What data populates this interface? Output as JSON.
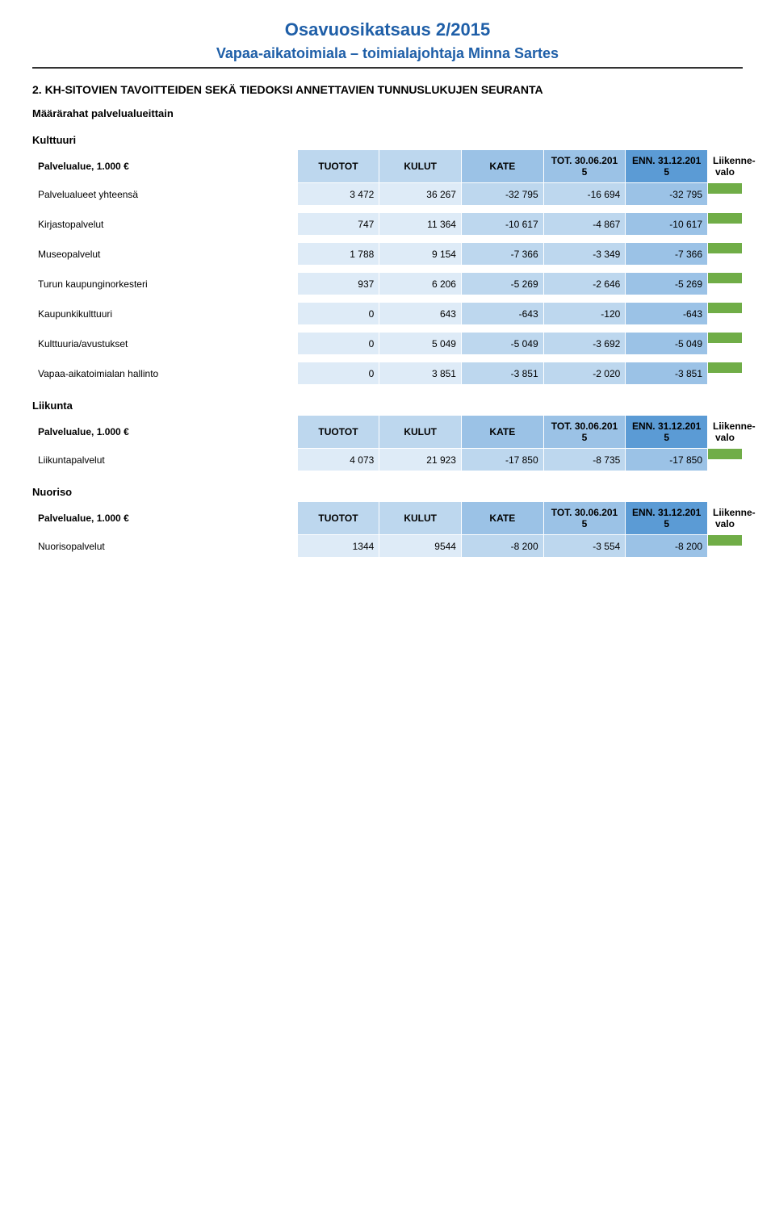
{
  "doc": {
    "title": "Osavuosikatsaus 2/2015",
    "subtitle": "Vapaa-aikatoimiala – toimialajohtaja Minna Sartes",
    "title_color": "#1f5fa8"
  },
  "section_header": "2. KH-SITOVIEN TAVOITTEIDEN SEKÄ TIEDOKSI ANNETTAVIEN TUNNUSLUKUJEN SEURANTA",
  "subheader": "Määrärahat palvelualueittain",
  "columns": {
    "label": "Palvelualue, 1.000 €",
    "tuotot": "TUOTOT",
    "kulut": "KULUT",
    "kate": "KATE",
    "tot": "TOT. 30.06.201 5",
    "enn": "ENN. 31.12.201 5",
    "signal": "Liikenne-valo"
  },
  "header_bg": {
    "label": "#ffffff",
    "tuotot": "#bdd7ee",
    "kulut": "#bdd7ee",
    "kate": "#9bc2e6",
    "tot": "#9bc2e6",
    "enn": "#5b9bd5",
    "signal": "#ffffff"
  },
  "cell_bg": {
    "label": "#ffffff",
    "tuotot": "#deebf7",
    "kulut": "#deebf7",
    "kate": "#bdd7ee",
    "tot": "#bdd7ee",
    "enn": "#9bc2e6",
    "signal_green": "#70ad47",
    "signal_blank": "#ffffff"
  },
  "groups": [
    {
      "name": "Kulttuuri",
      "show_header": true,
      "rows": [
        {
          "label": "Palvelualueet yhteensä",
          "tuotot": "3 472",
          "kulut": "36 267",
          "kate": "-32 795",
          "tot": "-16 694",
          "enn": "-32 795"
        }
      ]
    },
    {
      "rows": [
        {
          "label": "Kirjastopalvelut",
          "tuotot": "747",
          "kulut": "11 364",
          "kate": "-10 617",
          "tot": "-4 867",
          "enn": "-10 617"
        }
      ]
    },
    {
      "rows": [
        {
          "label": "Museopalvelut",
          "tuotot": "1 788",
          "kulut": "9 154",
          "kate": "-7 366",
          "tot": "-3 349",
          "enn": "-7 366"
        }
      ]
    },
    {
      "rows": [
        {
          "label": "Turun kaupunginorkesteri",
          "tuotot": "937",
          "kulut": "6 206",
          "kate": "-5 269",
          "tot": "-2 646",
          "enn": "-5 269"
        }
      ]
    },
    {
      "rows": [
        {
          "label": "Kaupunkikulttuuri",
          "tuotot": "0",
          "kulut": "643",
          "kate": "-643",
          "tot": "-120",
          "enn": "-643"
        }
      ]
    },
    {
      "rows": [
        {
          "label": "Kulttuuria/avustukset",
          "tuotot": "0",
          "kulut": "5 049",
          "kate": "-5 049",
          "tot": "-3 692",
          "enn": "-5 049"
        }
      ]
    },
    {
      "rows": [
        {
          "label": "Vapaa-aikatoimialan hallinto",
          "tuotot": "0",
          "kulut": "3 851",
          "kate": "-3 851",
          "tot": "-2 020",
          "enn": "-3 851"
        }
      ]
    },
    {
      "name": "Liikunta",
      "show_header": true,
      "rows": [
        {
          "label": "Liikuntapalvelut",
          "tuotot": "4 073",
          "kulut": "21 923",
          "kate": "-17 850",
          "tot": "-8 735",
          "enn": "-17 850"
        }
      ]
    },
    {
      "name": "Nuoriso",
      "show_header": true,
      "rows": [
        {
          "label": "Nuorisopalvelut",
          "tuotot": "1344",
          "kulut": "9544",
          "kate": "-8 200",
          "tot": "-3 554",
          "enn": "-8 200"
        }
      ]
    }
  ]
}
